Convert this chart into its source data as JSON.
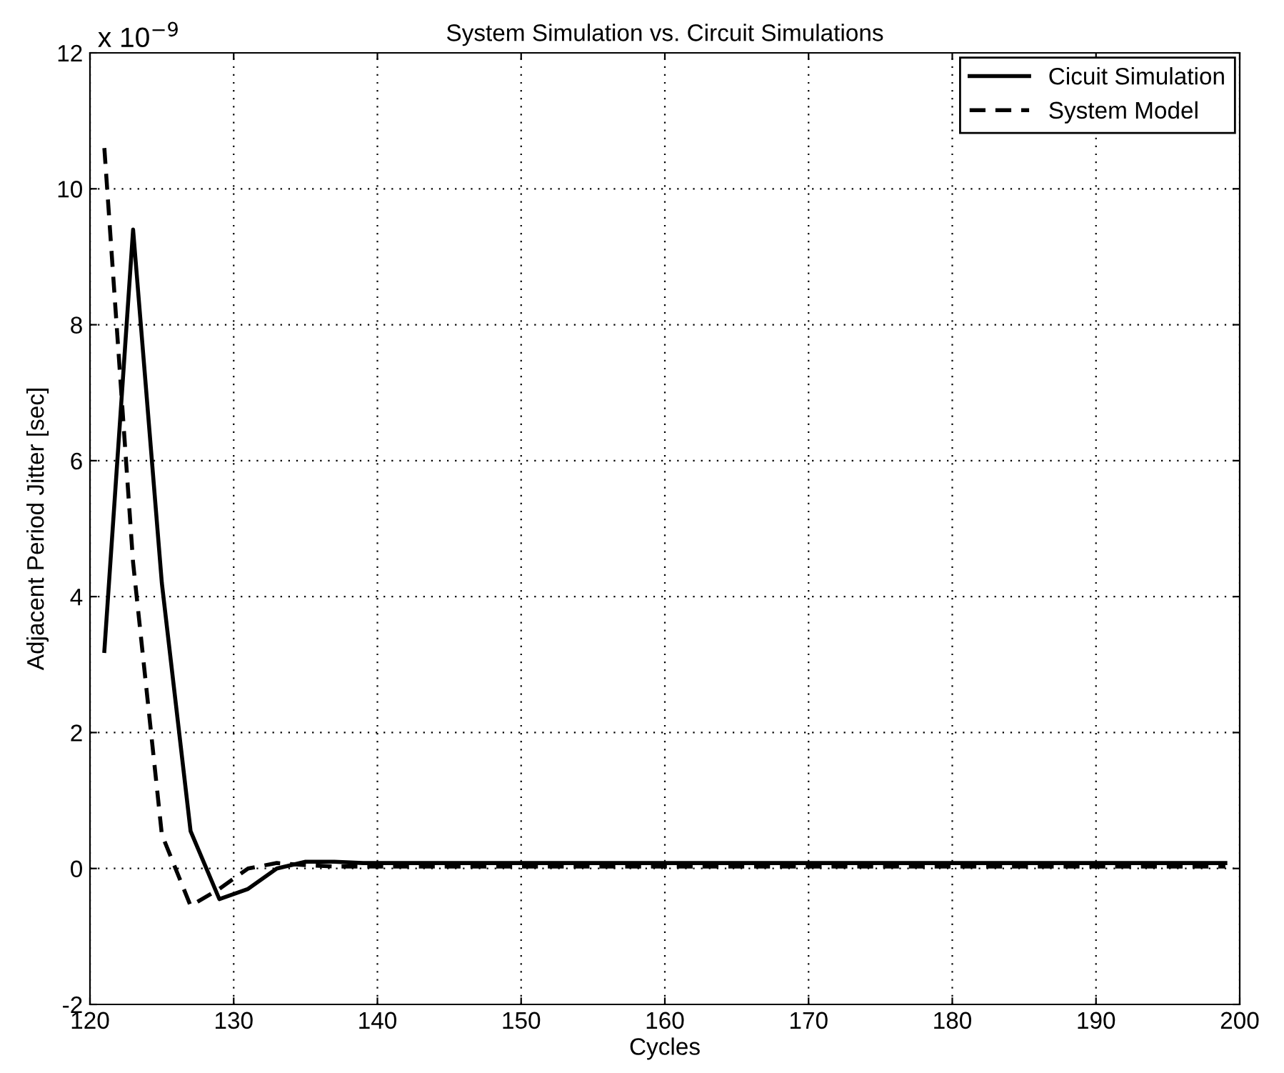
{
  "chart_data": {
    "type": "line",
    "title": "System Simulation vs. Circuit Simulations",
    "xlabel": "Cycles",
    "ylabel": "Adjacent Period Jitter [sec]",
    "annotations": [
      "x 10$^{−9}$"
    ],
    "x": [
      121,
      123,
      125,
      127,
      129,
      131,
      133,
      135,
      137,
      139,
      141,
      143,
      145,
      147,
      149,
      151,
      153,
      155,
      157,
      159,
      161,
      163,
      165,
      167,
      169,
      171,
      173,
      175,
      177,
      179,
      181,
      183,
      185,
      187,
      189,
      191,
      193,
      195,
      197,
      199
    ],
    "series": [
      {
        "name": "Cicuit Simulation",
        "color": "#000000",
        "line_style": "solid",
        "values": [
          3.2,
          9.4,
          4.2,
          0.55,
          -0.45,
          -0.3,
          0.0,
          0.1,
          0.1,
          0.08,
          0.08,
          0.08,
          0.08,
          0.08,
          0.08,
          0.08,
          0.08,
          0.08,
          0.08,
          0.08,
          0.08,
          0.08,
          0.08,
          0.08,
          0.08,
          0.08,
          0.08,
          0.08,
          0.08,
          0.08,
          0.08,
          0.08,
          0.08,
          0.08,
          0.08,
          0.08,
          0.08,
          0.08,
          0.08,
          0.08
        ]
      },
      {
        "name": "System Model",
        "color": "#000000",
        "line_style": "dashed",
        "values": [
          10.6,
          4.5,
          0.5,
          -0.55,
          -0.3,
          0.0,
          0.08,
          0.05,
          0.03,
          0.03,
          0.03,
          0.03,
          0.03,
          0.03,
          0.03,
          0.03,
          0.03,
          0.03,
          0.03,
          0.03,
          0.03,
          0.03,
          0.03,
          0.03,
          0.03,
          0.03,
          0.03,
          0.03,
          0.03,
          0.03,
          0.03,
          0.03,
          0.03,
          0.03,
          0.03,
          0.03,
          0.03,
          0.03,
          0.03,
          0.03
        ]
      }
    ],
    "xlim": [
      120,
      200
    ],
    "ylim": [
      -2,
      12
    ],
    "xticks": [
      120,
      130,
      140,
      150,
      160,
      170,
      180,
      190,
      200
    ],
    "yticks": [
      -2,
      0,
      2,
      4,
      6,
      8,
      10,
      12
    ],
    "grid": true,
    "legend": "top right",
    "marker": "none"
  }
}
